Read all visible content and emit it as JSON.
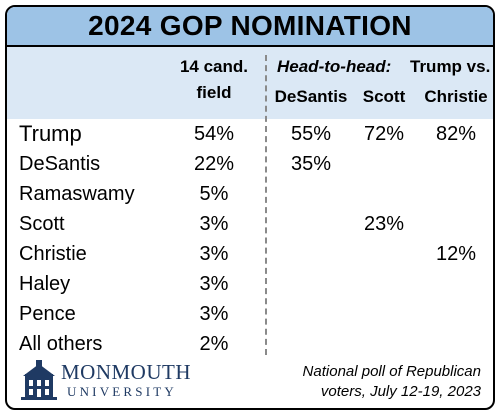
{
  "title": "2024 GOP NOMINATION",
  "headers": {
    "field_line1": "14 cand.",
    "field_line2": "field",
    "head_to_head": "Head-to-head:",
    "trump_vs": "Trump vs.",
    "desantis": "DeSantis",
    "scott": "Scott",
    "christie": "Christie"
  },
  "colors": {
    "title_bar": "#9dc3e6",
    "header_band": "#dbe8f5",
    "logo_blue": "#1f3a63"
  },
  "chart_data": {
    "type": "table",
    "title": "2024 GOP NOMINATION",
    "columns": [
      "14 cand. field",
      "DeSantis",
      "Scott",
      "Christie"
    ],
    "rows": [
      {
        "name": "Trump",
        "field": "54%",
        "desantis": "55%",
        "scott": "72%",
        "christie": "82%"
      },
      {
        "name": "DeSantis",
        "field": "22%",
        "desantis": "35%",
        "scott": "",
        "christie": ""
      },
      {
        "name": "Ramaswamy",
        "field": "5%",
        "desantis": "",
        "scott": "",
        "christie": ""
      },
      {
        "name": "Scott",
        "field": "3%",
        "desantis": "",
        "scott": "23%",
        "christie": ""
      },
      {
        "name": "Christie",
        "field": "3%",
        "desantis": "",
        "scott": "",
        "christie": "12%"
      },
      {
        "name": "Haley",
        "field": "3%",
        "desantis": "",
        "scott": "",
        "christie": ""
      },
      {
        "name": "Pence",
        "field": "3%",
        "desantis": "",
        "scott": "",
        "christie": ""
      },
      {
        "name": "All others",
        "field": "2%",
        "desantis": "",
        "scott": "",
        "christie": ""
      }
    ]
  },
  "logo": {
    "line1": "MONMOUTH",
    "line2": "UNIVERSITY",
    "icon": "building-icon"
  },
  "source": {
    "line1": "National poll of Republican",
    "line2": "voters,  July 12-19, 2023"
  }
}
